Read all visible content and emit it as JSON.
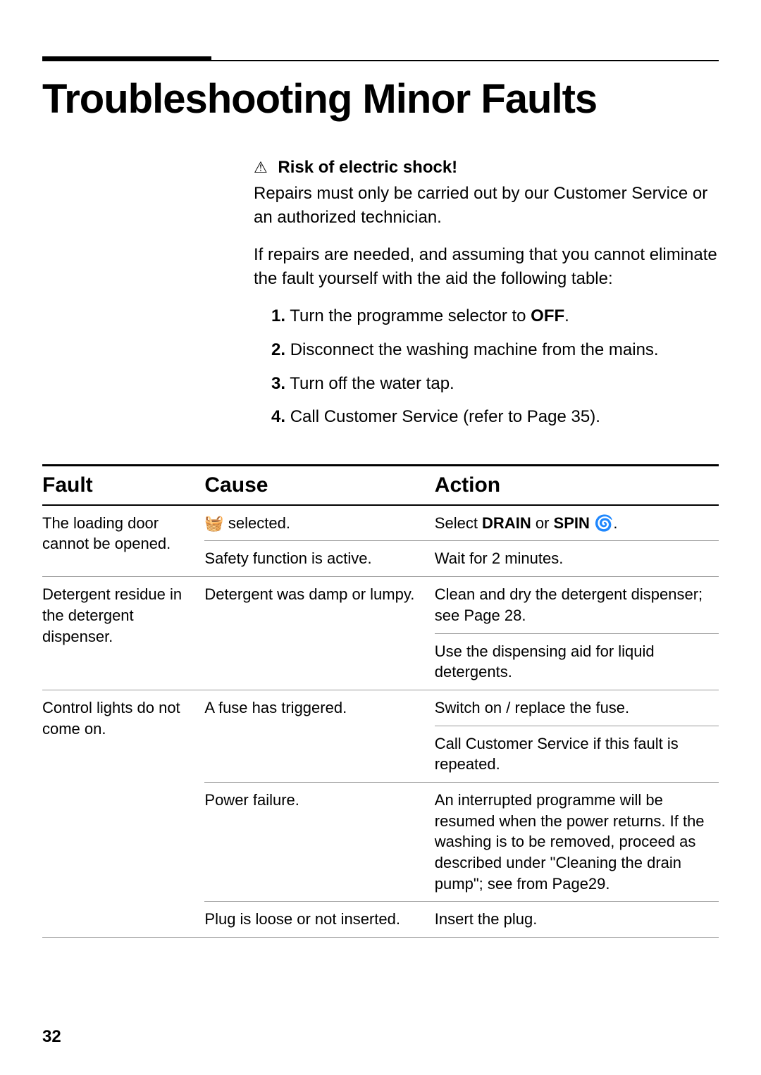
{
  "title": "Troubleshooting Minor Faults",
  "warning": {
    "icon": "⚠",
    "label": "Risk of electric shock!",
    "text": "Repairs must only be carried out by our Customer Service or an authorized technician."
  },
  "intro_paragraph": "If repairs are needed, and assuming that you cannot eliminate the fault yourself with the aid the following table:",
  "steps": [
    {
      "num": "1.",
      "pre": "Turn the programme selector to ",
      "bold": "OFF",
      "post": "."
    },
    {
      "num": "2.",
      "pre": "Disconnect the washing machine from the mains.",
      "bold": "",
      "post": ""
    },
    {
      "num": "3.",
      "pre": "Turn off the water tap.",
      "bold": "",
      "post": ""
    },
    {
      "num": "4.",
      "pre": "Call Customer Service (refer to Page 35).",
      "bold": "",
      "post": ""
    }
  ],
  "table": {
    "headers": {
      "fault": "Fault",
      "cause": "Cause",
      "action": "Action"
    },
    "rows": [
      {
        "fault": "The loading door cannot be opened.",
        "fault_rowspan": 2,
        "cause_icon": "🧺",
        "cause": " selected.",
        "action_pre": "Select ",
        "action_bold1": "DRAIN",
        "action_mid": " or ",
        "action_bold2": "SPIN",
        "action_icon": " 🌀",
        "action_post": "."
      },
      {
        "cause": "Safety function is active.",
        "action": "Wait for 2 minutes."
      },
      {
        "fault": "Detergent residue in the detergent dispenser.",
        "fault_rowspan": 2,
        "cause": "Detergent was damp or lumpy.",
        "cause_rowspan": 2,
        "action": "Clean and dry the detergent dispenser; see Page 28."
      },
      {
        "action": "Use the dispensing aid for liquid detergents."
      },
      {
        "fault": "Control lights do not come on.",
        "fault_rowspan": 4,
        "cause": "A fuse has triggered.",
        "cause_rowspan": 2,
        "action": "Switch on / replace the fuse."
      },
      {
        "action": "Call Customer Service if this fault is repeated."
      },
      {
        "cause": "Power failure.",
        "action": "An interrupted programme will be resumed when the power returns. If the washing is to be removed, proceed as described under \"Cleaning the drain pump\"; see from Page29."
      },
      {
        "cause": "Plug is loose or not inserted.",
        "action": "Insert the plug."
      }
    ]
  },
  "page_number": "32"
}
